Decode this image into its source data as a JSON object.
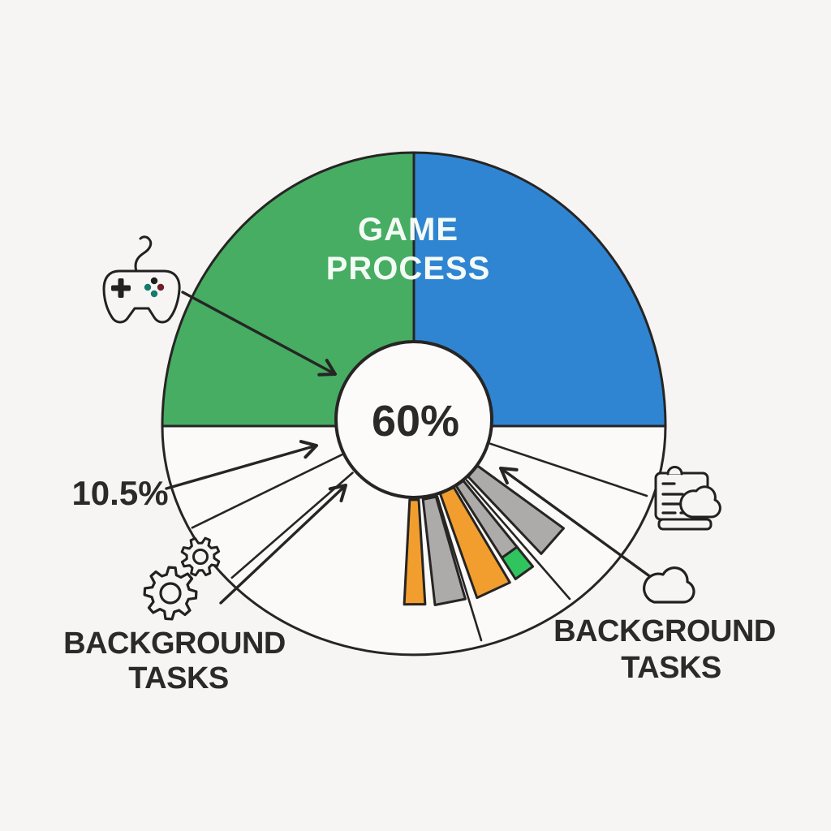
{
  "chart_data": {
    "type": "pie",
    "title": "",
    "center_label": "60%",
    "segments": [
      {
        "label": "GAME PROCESS",
        "value_label": "60%",
        "value": 60,
        "colors": [
          "#46AD63",
          "#2F85D2"
        ],
        "position": "top half"
      },
      {
        "label": "BACKGROUND TASKS",
        "value_label": "10.5%",
        "value": 10.5,
        "color": "#FBFAF8",
        "position": "bottom left"
      },
      {
        "label": "BACKGROUND TASKS",
        "color": "#FBFAF8",
        "position": "bottom right"
      }
    ],
    "mini_bars": [
      {
        "color": "#F29E2E"
      },
      {
        "color": "#ACABAA"
      },
      {
        "color": "#F29E2E"
      },
      {
        "color": "#ACABAA",
        "cap_color": "#2FC45E"
      },
      {
        "color": "#ACABAA"
      }
    ],
    "legend_position": "none",
    "grid": false
  },
  "labels": {
    "game_process": {
      "line1": "GAME",
      "line2": "PROCESS"
    },
    "center_percent": "60%",
    "left_percent": "10.5%",
    "background_left": {
      "line1": "BACKGROUND",
      "line2": "TASKS"
    },
    "background_right": {
      "line1": "BACKGROUND",
      "line2": "TASKS"
    }
  },
  "icons": [
    {
      "name": "game-controller-icon"
    },
    {
      "name": "gears-icon"
    },
    {
      "name": "document-cloud-icon"
    },
    {
      "name": "cloud-icon"
    }
  ],
  "colors": {
    "green": "#46AD63",
    "blue": "#2F85D2",
    "orange": "#F29E2E",
    "gray": "#ACABAA",
    "bright_green": "#2FC45E",
    "outline": "#262524",
    "background": "#F6F5F3",
    "text_dark": "#2B2A28",
    "text_light": "#F4FBF5"
  }
}
